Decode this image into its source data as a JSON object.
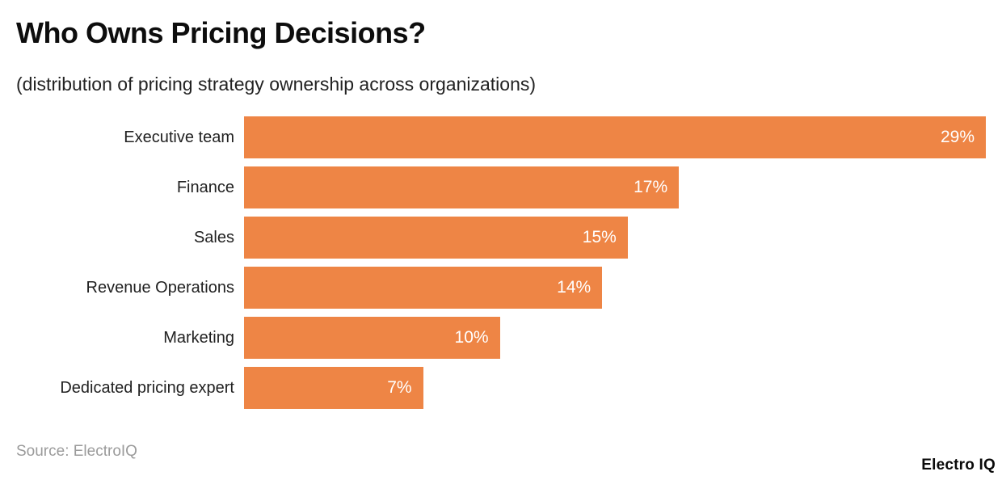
{
  "header": {
    "title": "Who Owns Pricing Decisions?",
    "subtitle": "(distribution of pricing strategy ownership across organizations)"
  },
  "footer": {
    "source": "Source: ElectroIQ",
    "logo": "Electro IQ"
  },
  "colors": {
    "bar": "#EE8545",
    "value_label": "#FFFFFF",
    "category_label": "#212121",
    "title": "#0D0D0D",
    "source": "#9B9B9B",
    "background": "#FFFFFF"
  },
  "chart_data": {
    "type": "bar",
    "orientation": "horizontal",
    "title": "Who Owns Pricing Decisions?",
    "subtitle": "(distribution of pricing strategy ownership across organizations)",
    "categories": [
      "Executive team",
      "Finance",
      "Sales",
      "Revenue Operations",
      "Marketing",
      "Dedicated pricing expert"
    ],
    "values": [
      29,
      17,
      15,
      14,
      10,
      7
    ],
    "value_labels": [
      "29%",
      "17%",
      "15%",
      "14%",
      "10%",
      "7%"
    ],
    "xlabel": "",
    "ylabel": "",
    "xlim": [
      0,
      29
    ],
    "grid": false,
    "legend": false,
    "bar_color": "#EE8545",
    "value_label_position": "inside-end",
    "source": "Source: ElectroIQ"
  }
}
